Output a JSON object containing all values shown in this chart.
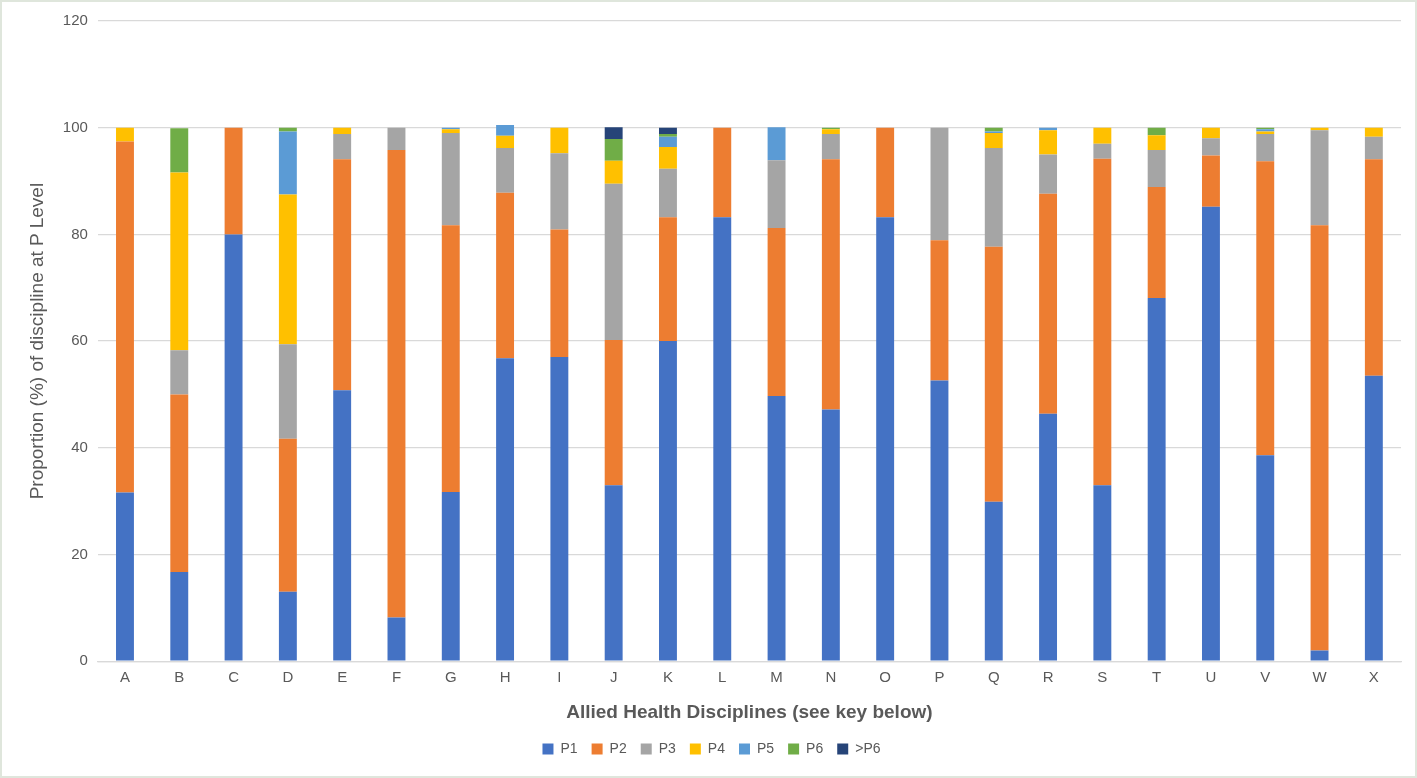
{
  "chart_data": {
    "type": "bar",
    "stacked": true,
    "xlabel": "Allied Health Disciplines (see key below)",
    "ylabel": "Proportion (%) of discipline at P Level",
    "categories": [
      "A",
      "B",
      "C",
      "D",
      "E",
      "F",
      "G",
      "H",
      "I",
      "J",
      "K",
      "L",
      "M",
      "N",
      "O",
      "P",
      "Q",
      "R",
      "S",
      "T",
      "U",
      "V",
      "W",
      "X"
    ],
    "series": [
      {
        "name": "P1",
        "color": "#4472c4",
        "values": [
          31.6,
          16.7,
          80,
          13.0,
          50.8,
          8.2,
          31.7,
          56.8,
          57.0,
          33.0,
          60.0,
          83.2,
          49.7,
          47.2,
          83.2,
          52.6,
          29.9,
          46.4,
          33.0,
          68.1,
          85.2,
          38.6,
          2.0,
          53.5
        ]
      },
      {
        "name": "P2",
        "color": "#ed7d31",
        "values": [
          65.8,
          33.3,
          20,
          28.7,
          43.3,
          87.6,
          50.0,
          31.0,
          23.9,
          27.2,
          23.2,
          16.8,
          31.5,
          46.9,
          16.8,
          26.3,
          47.8,
          41.2,
          61.2,
          20.8,
          9.6,
          55.1,
          79.7,
          40.6
        ]
      },
      {
        "name": "P3",
        "color": "#a5a5a5",
        "values": [
          0,
          8.3,
          0,
          17.7,
          4.7,
          4.2,
          17.3,
          8.4,
          14.3,
          29.3,
          9.1,
          0,
          12.7,
          4.7,
          0,
          21.1,
          18.5,
          7.4,
          2.8,
          6.9,
          3.2,
          5.1,
          17.8,
          4.2
        ]
      },
      {
        "name": "P4",
        "color": "#ffc000",
        "values": [
          2.6,
          33.3,
          0,
          28.1,
          1.2,
          0,
          0.7,
          2.3,
          4.8,
          4.3,
          4.1,
          0,
          0,
          0.9,
          0,
          0,
          2.8,
          4.5,
          3.0,
          2.8,
          2.0,
          0.5,
          0.5,
          1.7
        ]
      },
      {
        "name": "P5",
        "color": "#5b9bd5",
        "values": [
          0,
          0,
          0,
          11.8,
          0,
          0,
          0.3,
          2.0,
          0,
          0,
          1.9,
          0,
          6.2,
          0,
          0,
          0,
          0.3,
          0.5,
          0,
          0,
          0,
          0.4,
          0,
          0
        ]
      },
      {
        "name": "P6",
        "color": "#70ad47",
        "values": [
          0,
          8.3,
          0,
          0.7,
          0,
          0,
          0,
          0,
          0,
          4.1,
          0.5,
          0,
          0,
          0.3,
          0,
          0,
          0.7,
          0,
          0,
          1.4,
          0,
          0.3,
          0,
          0
        ]
      },
      {
        "name": ">P6",
        "color": "#264478",
        "values": [
          0,
          0,
          0,
          0,
          0,
          0,
          0,
          0,
          0,
          2.2,
          1.2,
          0,
          0,
          0,
          0,
          0,
          0,
          0,
          0,
          0,
          0,
          0,
          0,
          0
        ]
      }
    ],
    "ylim": [
      0,
      120
    ],
    "yticks": [
      0,
      20,
      40,
      60,
      80,
      100,
      120
    ],
    "grid": "y",
    "legend": "bottom"
  }
}
